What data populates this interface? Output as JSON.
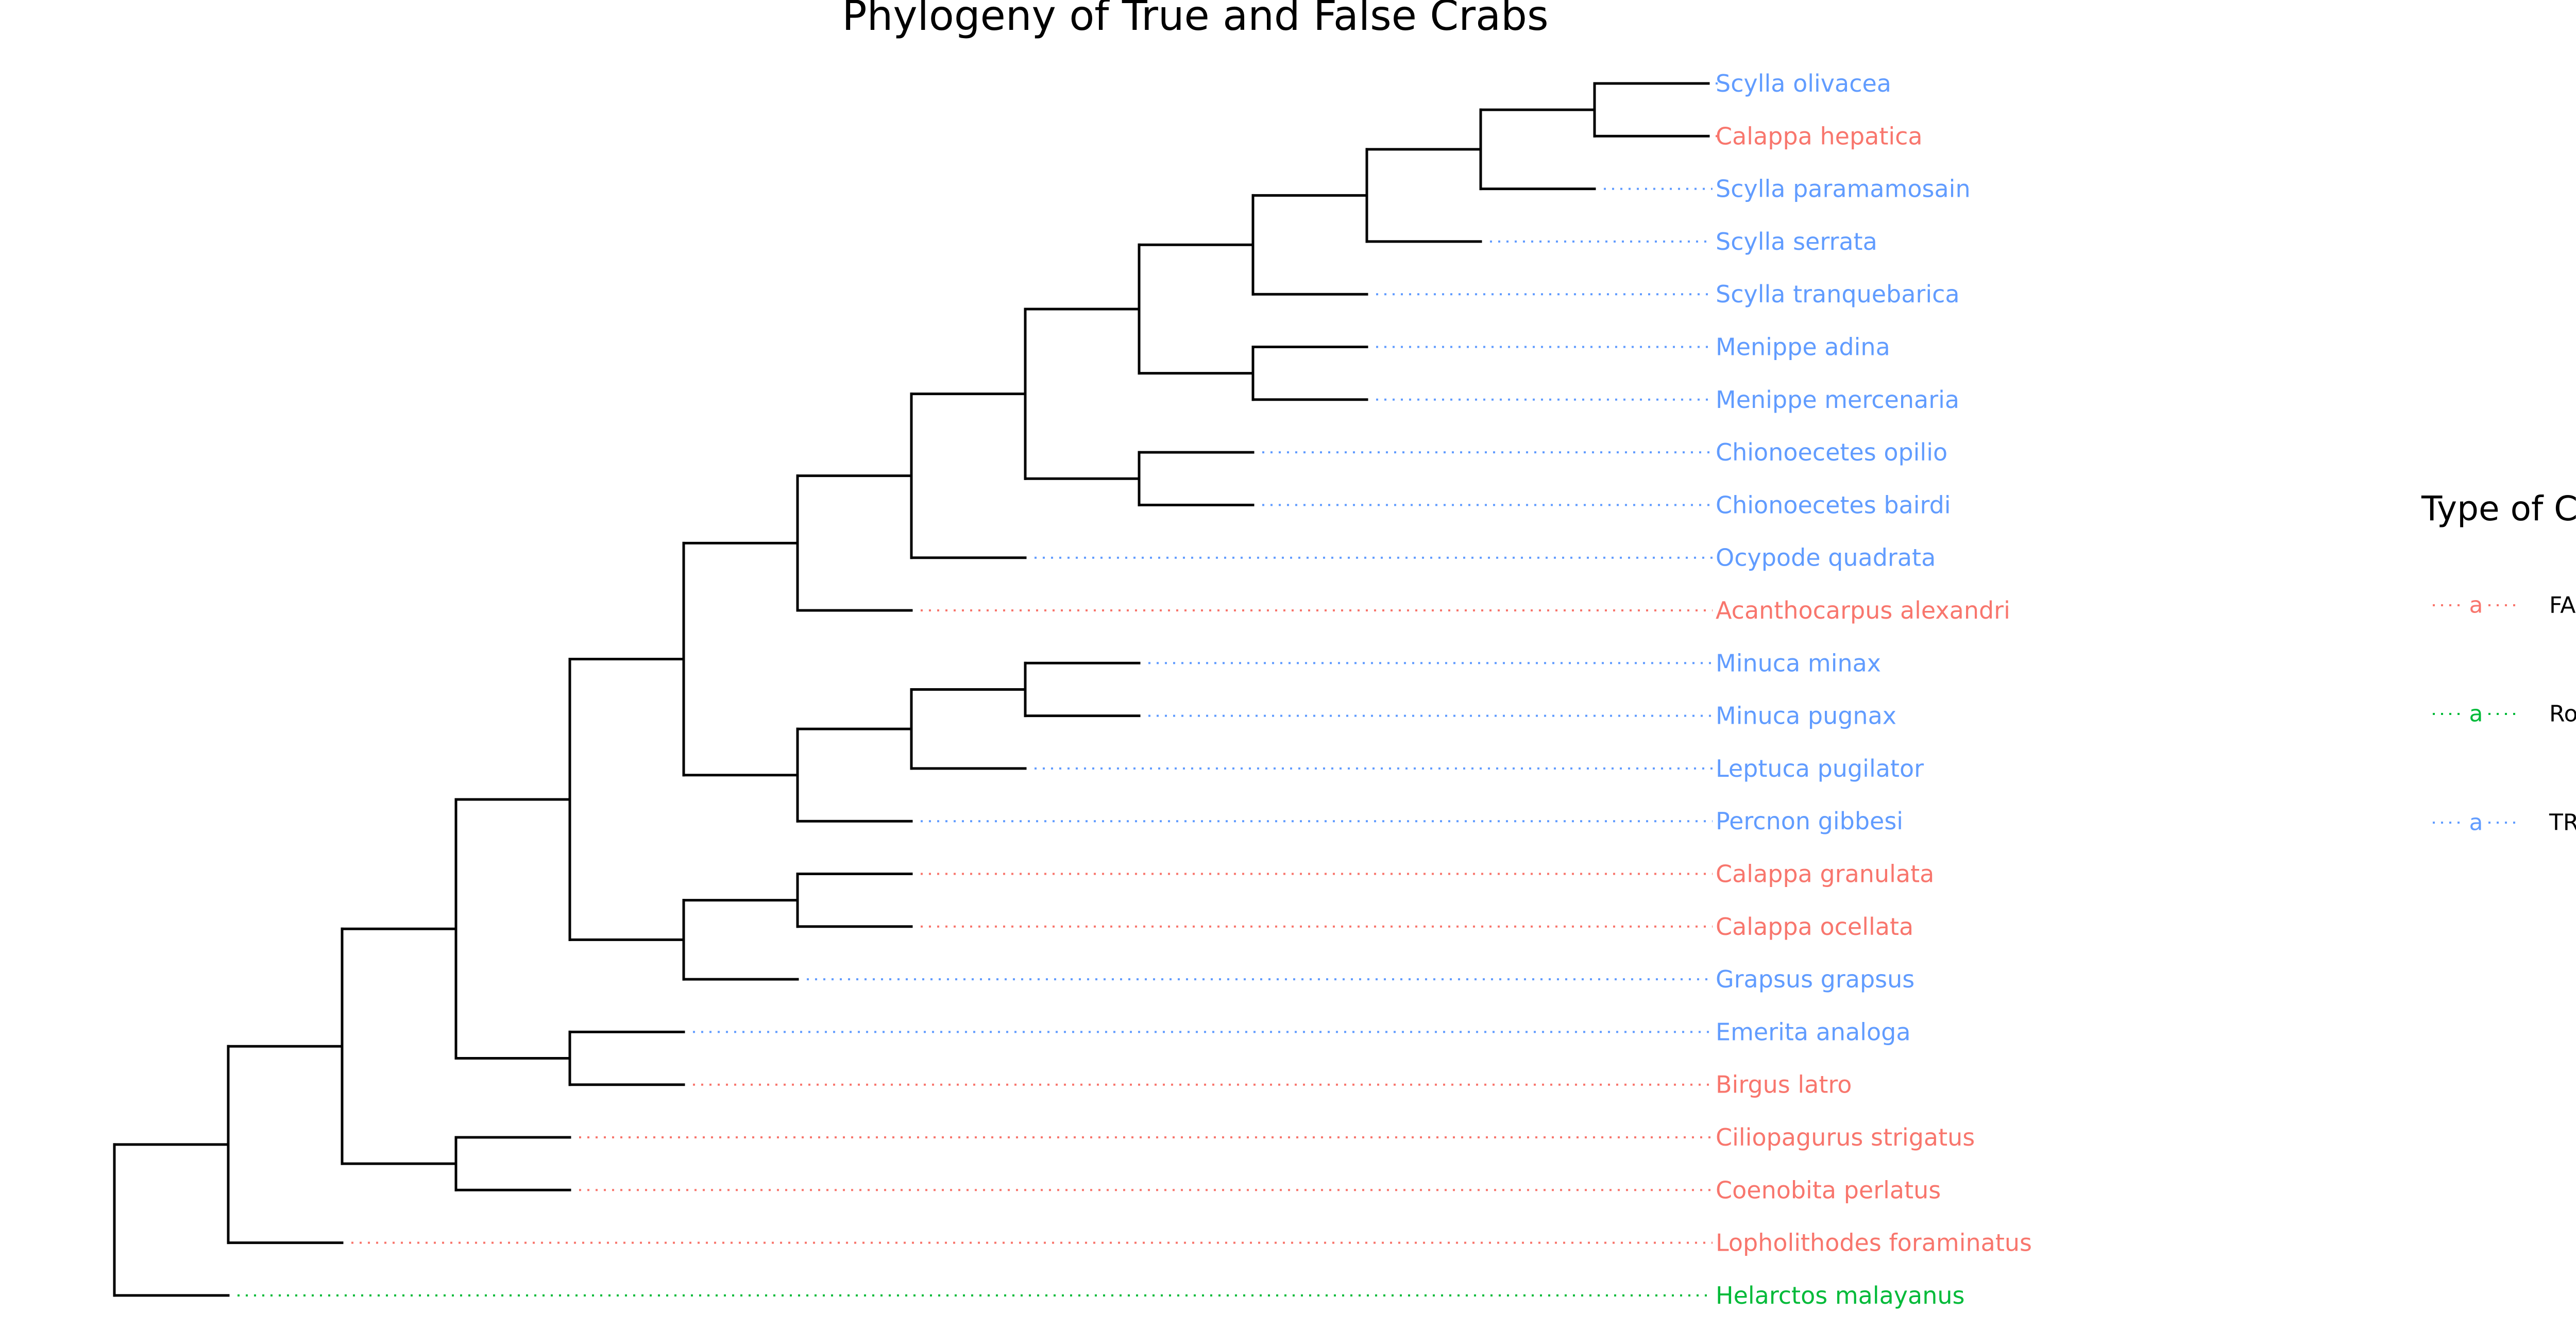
{
  "title": "Phylogeny of True and False Crabs",
  "legend": {
    "title": "Type of Crab",
    "key_glyph": "a",
    "entries": [
      {
        "label": "FALSE",
        "group": "false"
      },
      {
        "label": "Root",
        "group": "root"
      },
      {
        "label": "TRUE",
        "group": "true"
      }
    ]
  },
  "colors": {
    "true": "#619CFF",
    "false": "#F8766D",
    "root": "#00BA38",
    "branch": "#000000"
  },
  "tree": {
    "name": "root",
    "children": [
      {
        "name": "n1",
        "children": [
          {
            "name": "n2",
            "children": [
              {
                "name": "n3",
                "children": [
                  {
                    "name": "n4",
                    "children": [
                      {
                        "name": "n5",
                        "children": [
                          {
                            "name": "n6",
                            "children": [
                              {
                                "name": "n7",
                                "children": [
                                  {
                                    "name": "n8",
                                    "children": [
                                      {
                                        "name": "n9",
                                        "children": [
                                          {
                                            "name": "n10",
                                            "children": [
                                              {
                                                "name": "n11",
                                                "children": [
                                                  {
                                                    "name": "Scylla olivacea",
                                                    "group": "true"
                                                  },
                                                  {
                                                    "name": "Calappa hepatica",
                                                    "group": "false"
                                                  }
                                                ]
                                              },
                                              {
                                                "name": "Scylla paramamosain",
                                                "group": "true"
                                              }
                                            ]
                                          },
                                          {
                                            "name": "Scylla serrata",
                                            "group": "true"
                                          }
                                        ]
                                      },
                                      {
                                        "name": "Scylla tranquebarica",
                                        "group": "true"
                                      }
                                    ]
                                  },
                                  {
                                    "name": "n12",
                                    "children": [
                                      {
                                        "name": "Menippe adina",
                                        "group": "true"
                                      },
                                      {
                                        "name": "Menippe mercenaria",
                                        "group": "true"
                                      }
                                    ]
                                  }
                                ]
                              },
                              {
                                "name": "n13",
                                "children": [
                                  {
                                    "name": "Chionoecetes opilio",
                                    "group": "true"
                                  },
                                  {
                                    "name": "Chionoecetes bairdi",
                                    "group": "true"
                                  }
                                ]
                              }
                            ]
                          },
                          {
                            "name": "Ocypode quadrata",
                            "group": "true"
                          }
                        ]
                      },
                      {
                        "name": "Acanthocarpus alexandri",
                        "group": "false"
                      }
                    ]
                  },
                  {
                    "name": "n14",
                    "children": [
                      {
                        "name": "n15",
                        "children": [
                          {
                            "name": "n16",
                            "children": [
                              {
                                "name": "Minuca minax",
                                "group": "true"
                              },
                              {
                                "name": "Minuca pugnax",
                                "group": "true"
                              }
                            ]
                          },
                          {
                            "name": "Leptuca pugilator",
                            "group": "true"
                          }
                        ]
                      },
                      {
                        "name": "Percnon gibbesi",
                        "group": "true"
                      }
                    ]
                  }
                ]
              },
              {
                "name": "n17",
                "children": [
                  {
                    "name": "n18",
                    "children": [
                      {
                        "name": "Calappa granulata",
                        "group": "false"
                      },
                      {
                        "name": "Calappa ocellata",
                        "group": "false"
                      }
                    ]
                  },
                  {
                    "name": "Grapsus grapsus",
                    "group": "true"
                  }
                ]
              }
            ]
          },
          {
            "name": "n19",
            "children": [
              {
                "name": "Emerita analoga",
                "group": "true"
              },
              {
                "name": "Birgus latro",
                "group": "false"
              }
            ]
          }
        ]
      },
      {
        "name": "n20",
        "children": [
          {
            "name": "Ciliopagurus strigatus",
            "group": "false"
          },
          {
            "name": "Coenobita perlatus",
            "group": "false"
          }
        ]
      }
    ]
  },
  "tree_extra": [
    {
      "name": "Lopholithodes foraminatus",
      "group": "false"
    },
    {
      "name": "Helarctos malayanus",
      "group": "root"
    }
  ]
}
